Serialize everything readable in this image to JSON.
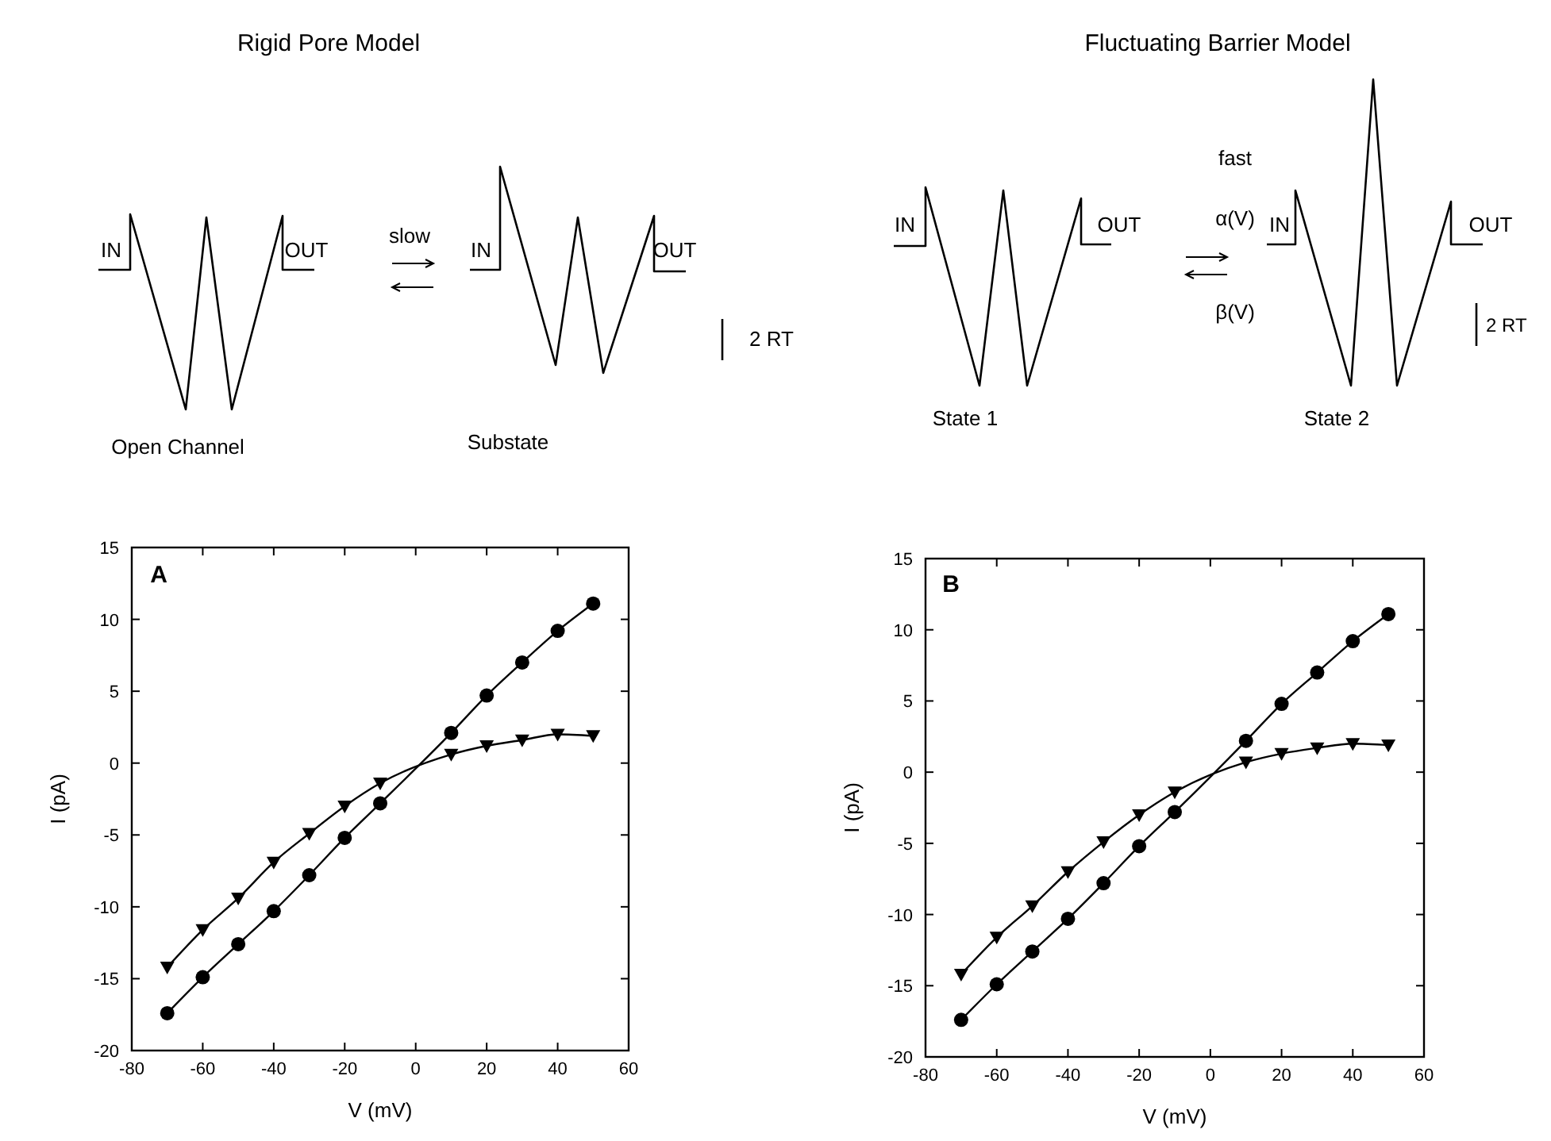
{
  "chart_data": [
    {
      "type": "line",
      "title": "Rigid Pore Model",
      "xlabel": "V (mV)",
      "ylabel": "I (pA)",
      "annotations": [
        "A",
        "IN",
        "OUT",
        "slow",
        "IN",
        "OUT",
        "2 RT",
        "Open Channel",
        "Substate"
      ],
      "x": [
        -70,
        -60,
        -50,
        -40,
        -30,
        -20,
        -10,
        10,
        20,
        30,
        40,
        50
      ],
      "series": [
        {
          "color": "#000000",
          "marker": "circle",
          "values": [
            -17.4,
            -14.9,
            -12.6,
            -10.3,
            -7.8,
            -5.2,
            -2.8,
            2.1,
            4.7,
            7.0,
            9.2,
            11.1
          ]
        },
        {
          "color": "#000000",
          "marker": "triangle",
          "values": [
            -14.2,
            -11.6,
            -9.4,
            -6.9,
            -4.9,
            -3.0,
            -1.4,
            0.6,
            1.2,
            1.6,
            2.0,
            1.9
          ]
        }
      ],
      "xlim": [
        -80,
        60
      ],
      "xticks": [
        -80,
        -60,
        -40,
        -20,
        0,
        20,
        40,
        60
      ],
      "ylim": [
        -20,
        15
      ],
      "yticks": [
        -20,
        -15,
        -10,
        -5,
        0,
        5,
        10,
        15
      ]
    },
    {
      "type": "line",
      "title": "Fluctuating Barrier Model",
      "xlabel": "V (mV)",
      "ylabel": "I (pA)",
      "annotations": [
        "B",
        "IN",
        "OUT",
        "fast",
        "α(V)",
        "β(V)",
        "IN",
        "OUT",
        "2 RT",
        "State 1",
        "State 2"
      ],
      "x": [
        -70,
        -60,
        -50,
        -40,
        -30,
        -20,
        -10,
        10,
        20,
        30,
        40,
        50
      ],
      "series": [
        {
          "color": "#000000",
          "marker": "circle",
          "values": [
            -17.4,
            -14.9,
            -12.6,
            -10.3,
            -7.8,
            -5.2,
            -2.8,
            2.2,
            4.8,
            7.0,
            9.2,
            11.1
          ]
        },
        {
          "color": "#000000",
          "marker": "triangle",
          "values": [
            -14.2,
            -11.6,
            -9.4,
            -7.0,
            -4.9,
            -3.0,
            -1.4,
            0.7,
            1.3,
            1.7,
            2.0,
            1.9
          ]
        }
      ],
      "xlim": [
        -80,
        60
      ],
      "xticks": [
        -80,
        -60,
        -40,
        -20,
        0,
        20,
        40,
        60
      ],
      "ylim": [
        -20,
        15
      ],
      "yticks": [
        -20,
        -15,
        -10,
        -5,
        0,
        5,
        10,
        15
      ]
    }
  ]
}
